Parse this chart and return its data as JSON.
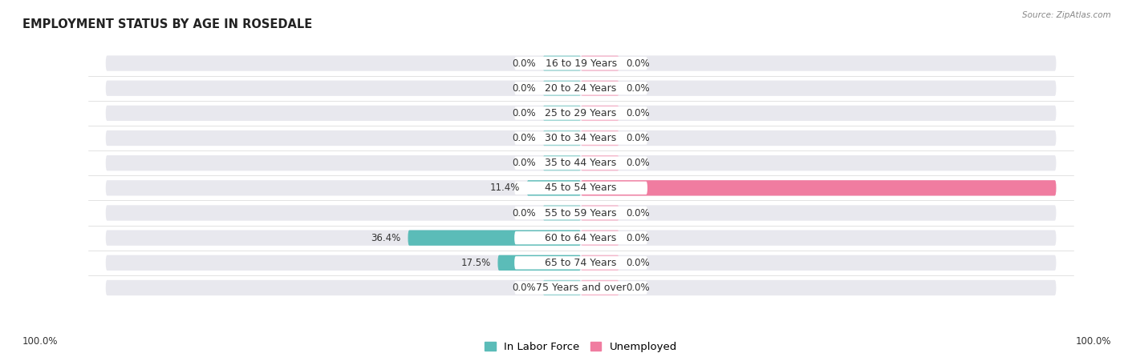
{
  "title": "EMPLOYMENT STATUS BY AGE IN ROSEDALE",
  "source": "Source: ZipAtlas.com",
  "categories": [
    "16 to 19 Years",
    "20 to 24 Years",
    "25 to 29 Years",
    "30 to 34 Years",
    "35 to 44 Years",
    "45 to 54 Years",
    "55 to 59 Years",
    "60 to 64 Years",
    "65 to 74 Years",
    "75 Years and over"
  ],
  "in_labor_force": [
    0.0,
    0.0,
    0.0,
    0.0,
    0.0,
    11.4,
    0.0,
    36.4,
    17.5,
    0.0
  ],
  "unemployed": [
    0.0,
    0.0,
    0.0,
    0.0,
    0.0,
    100.0,
    0.0,
    0.0,
    0.0,
    0.0
  ],
  "labor_color": "#5bbcb8",
  "labor_stub_color": "#9ed6d4",
  "unemployed_color": "#f07ca0",
  "unemployed_stub_color": "#f5b8cc",
  "bg_row_color": "#e8e8ee",
  "label_box_color": "#ffffff",
  "axis_max": 100.0,
  "stub_pct": 8.0,
  "legend_labor": "In Labor Force",
  "legend_unemployed": "Unemployed",
  "title_fontsize": 10.5,
  "label_fontsize": 9.0,
  "value_fontsize": 8.5,
  "background_color": "#ffffff"
}
